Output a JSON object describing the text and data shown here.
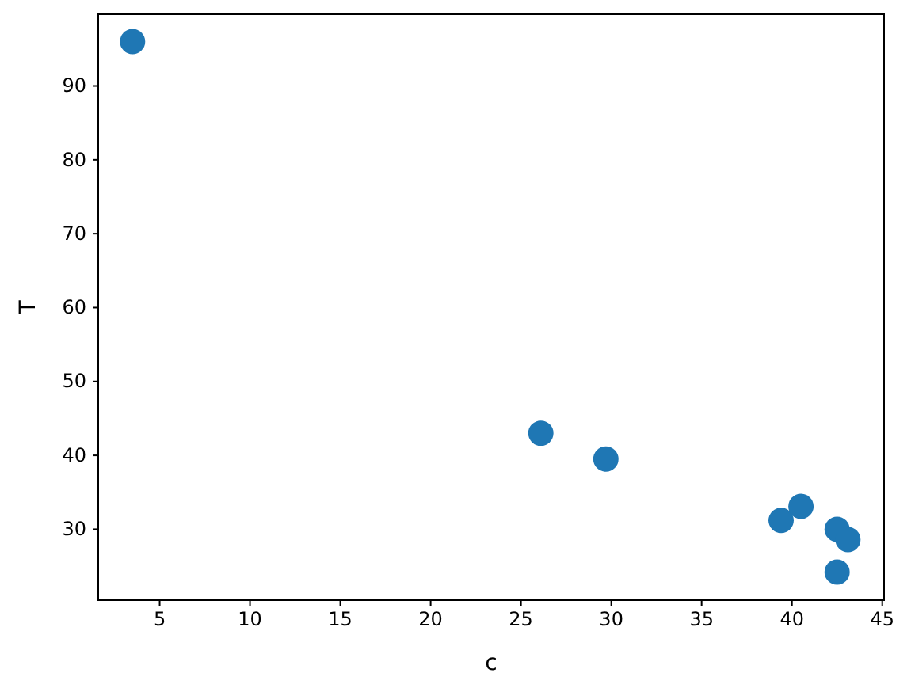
{
  "chart_data": {
    "type": "scatter",
    "xlabel": "c",
    "ylabel": "T",
    "x": [
      3.5,
      26.1,
      29.7,
      39.4,
      40.5,
      42.5,
      43.1,
      42.5
    ],
    "series": [
      {
        "color": "#1f77b4",
        "values": [
          96,
          43,
          39.5,
          31.2,
          33.1,
          30,
          28.6,
          24.2
        ]
      }
    ],
    "xlim": [
      1.6,
      45.1
    ],
    "xticks": [
      5,
      10,
      15,
      20,
      25,
      30,
      35,
      40,
      45
    ],
    "ylim": [
      20.4,
      99.7
    ],
    "yticks": [
      30,
      40,
      50,
      60,
      70,
      80,
      90
    ],
    "marker": "circle"
  }
}
